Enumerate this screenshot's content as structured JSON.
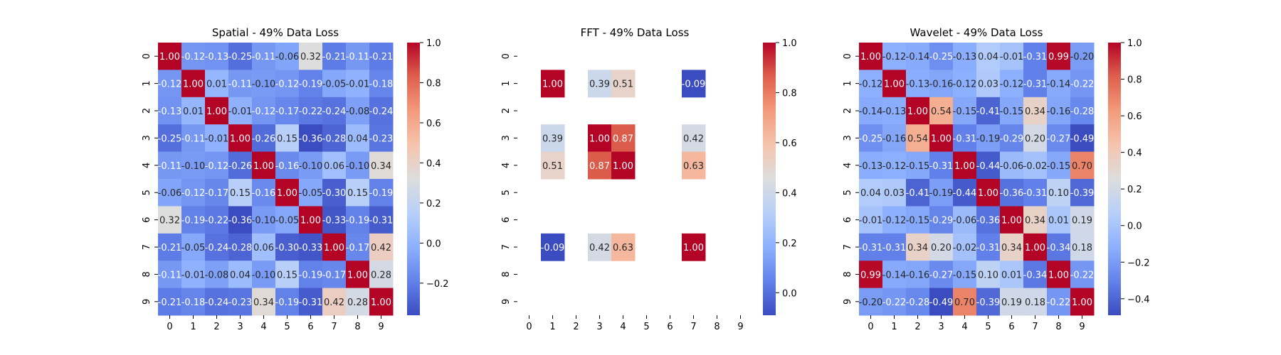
{
  "chart_data": [
    {
      "type": "heatmap",
      "title": "Spatial - 49% Data Loss",
      "xlabel": "",
      "ylabel": "",
      "x_ticks": [
        "0",
        "1",
        "2",
        "3",
        "4",
        "5",
        "6",
        "7",
        "8",
        "9"
      ],
      "y_ticks": [
        "0",
        "1",
        "2",
        "3",
        "4",
        "5",
        "6",
        "7",
        "8",
        "9"
      ],
      "colormap": "coolwarm",
      "vmin": -0.36,
      "vmax": 1.0,
      "colorbar_ticks": [
        "-0.2",
        "0.0",
        "0.2",
        "0.4",
        "0.6",
        "0.8",
        "1.0"
      ],
      "annotation_format": "0.00",
      "values": [
        [
          1.0,
          -0.12,
          -0.13,
          -0.25,
          -0.11,
          -0.06,
          0.32,
          -0.21,
          -0.11,
          -0.21
        ],
        [
          -0.12,
          1.0,
          0.01,
          -0.11,
          -0.1,
          -0.12,
          -0.19,
          -0.05,
          -0.01,
          -0.18
        ],
        [
          -0.13,
          0.01,
          1.0,
          -0.01,
          -0.12,
          -0.17,
          -0.22,
          -0.24,
          -0.08,
          -0.24
        ],
        [
          -0.25,
          -0.11,
          -0.01,
          1.0,
          -0.26,
          0.15,
          -0.36,
          -0.28,
          0.04,
          -0.23
        ],
        [
          -0.11,
          -0.1,
          -0.12,
          -0.26,
          1.0,
          -0.16,
          -0.1,
          0.06,
          -0.1,
          0.34
        ],
        [
          -0.06,
          -0.12,
          -0.17,
          0.15,
          -0.16,
          1.0,
          -0.05,
          -0.3,
          0.15,
          -0.19
        ],
        [
          0.32,
          -0.19,
          -0.22,
          -0.36,
          -0.1,
          -0.05,
          1.0,
          -0.33,
          -0.19,
          -0.31
        ],
        [
          -0.21,
          -0.05,
          -0.24,
          -0.28,
          0.06,
          -0.3,
          -0.33,
          1.0,
          -0.17,
          0.42
        ],
        [
          -0.11,
          -0.01,
          -0.08,
          0.04,
          -0.1,
          0.15,
          -0.19,
          -0.17,
          1.0,
          0.28
        ],
        [
          -0.21,
          -0.18,
          -0.24,
          -0.23,
          0.34,
          -0.19,
          -0.31,
          0.42,
          0.28,
          1.0
        ]
      ]
    },
    {
      "type": "heatmap",
      "title": "FFT - 49% Data Loss",
      "xlabel": "",
      "ylabel": "",
      "x_ticks": [
        "0",
        "1",
        "2",
        "3",
        "4",
        "5",
        "6",
        "7",
        "8",
        "9"
      ],
      "y_ticks": [
        "0",
        "1",
        "2",
        "3",
        "4",
        "5",
        "6",
        "7",
        "8",
        "9"
      ],
      "colormap": "coolwarm",
      "vmin": -0.09,
      "vmax": 1.0,
      "colorbar_ticks": [
        "0.0",
        "0.2",
        "0.4",
        "0.6",
        "0.8",
        "1.0"
      ],
      "annotation_format": "0.00",
      "values": [
        [
          null,
          null,
          null,
          null,
          null,
          null,
          null,
          null,
          null,
          null
        ],
        [
          null,
          1.0,
          null,
          0.39,
          0.51,
          null,
          null,
          -0.09,
          null,
          null
        ],
        [
          null,
          null,
          null,
          null,
          null,
          null,
          null,
          null,
          null,
          null
        ],
        [
          null,
          0.39,
          null,
          1.0,
          0.87,
          null,
          null,
          0.42,
          null,
          null
        ],
        [
          null,
          0.51,
          null,
          0.87,
          1.0,
          null,
          null,
          0.63,
          null,
          null
        ],
        [
          null,
          null,
          null,
          null,
          null,
          null,
          null,
          null,
          null,
          null
        ],
        [
          null,
          null,
          null,
          null,
          null,
          null,
          null,
          null,
          null,
          null
        ],
        [
          null,
          -0.09,
          null,
          0.42,
          0.63,
          null,
          null,
          1.0,
          null,
          null
        ],
        [
          null,
          null,
          null,
          null,
          null,
          null,
          null,
          null,
          null,
          null
        ],
        [
          null,
          null,
          null,
          null,
          null,
          null,
          null,
          null,
          null,
          null
        ]
      ]
    },
    {
      "type": "heatmap",
      "title": "Wavelet - 49% Data Loss",
      "xlabel": "",
      "ylabel": "",
      "x_ticks": [
        "0",
        "1",
        "2",
        "3",
        "4",
        "5",
        "6",
        "7",
        "8",
        "9"
      ],
      "y_ticks": [
        "0",
        "1",
        "2",
        "3",
        "4",
        "5",
        "6",
        "7",
        "8",
        "9"
      ],
      "colormap": "coolwarm",
      "vmin": -0.49,
      "vmax": 1.0,
      "colorbar_ticks": [
        "-0.4",
        "-0.2",
        "0.0",
        "0.2",
        "0.4",
        "0.6",
        "0.8",
        "1.0"
      ],
      "annotation_format": "0.00",
      "values": [
        [
          1.0,
          -0.12,
          -0.14,
          -0.25,
          -0.13,
          0.04,
          -0.01,
          -0.31,
          0.99,
          -0.2
        ],
        [
          -0.12,
          1.0,
          -0.13,
          -0.16,
          -0.12,
          0.03,
          -0.12,
          -0.31,
          -0.14,
          -0.22
        ],
        [
          -0.14,
          -0.13,
          1.0,
          0.54,
          -0.15,
          -0.41,
          -0.15,
          0.34,
          -0.16,
          -0.28
        ],
        [
          -0.25,
          -0.16,
          0.54,
          1.0,
          -0.31,
          -0.19,
          -0.29,
          0.2,
          -0.27,
          -0.49
        ],
        [
          -0.13,
          -0.12,
          -0.15,
          -0.31,
          1.0,
          -0.44,
          -0.06,
          -0.02,
          -0.15,
          0.7
        ],
        [
          0.04,
          0.03,
          -0.41,
          -0.19,
          -0.44,
          1.0,
          -0.36,
          -0.31,
          0.1,
          -0.39
        ],
        [
          -0.01,
          -0.12,
          -0.15,
          -0.29,
          -0.06,
          -0.36,
          1.0,
          0.34,
          0.01,
          0.19
        ],
        [
          -0.31,
          -0.31,
          0.34,
          0.2,
          -0.02,
          -0.31,
          0.34,
          1.0,
          -0.34,
          0.18
        ],
        [
          0.99,
          -0.14,
          -0.16,
          -0.27,
          -0.15,
          0.1,
          0.01,
          -0.34,
          1.0,
          -0.22
        ],
        [
          -0.2,
          -0.22,
          -0.28,
          -0.49,
          0.7,
          -0.39,
          0.19,
          0.18,
          -0.22,
          1.0
        ]
      ]
    }
  ]
}
